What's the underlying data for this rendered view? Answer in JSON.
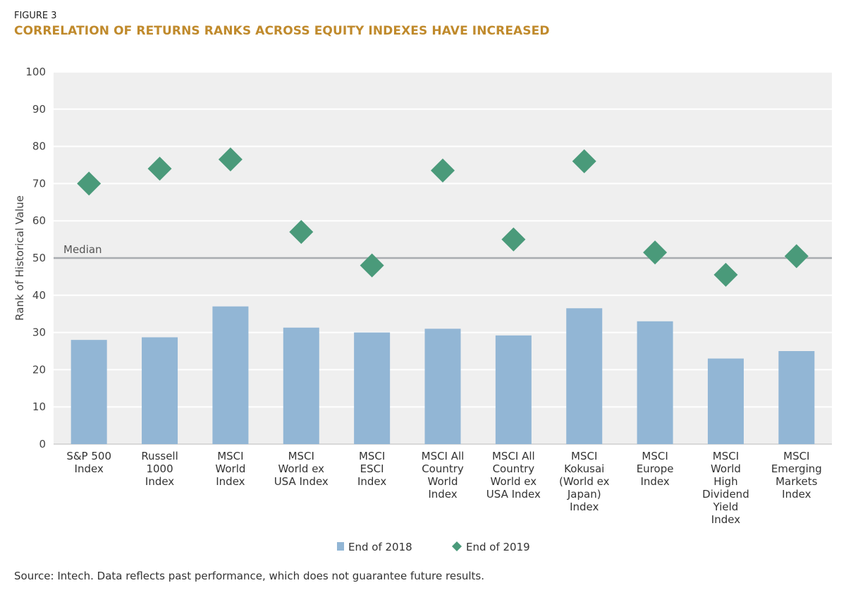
{
  "figure_label": "FIGURE 3",
  "title": "CORRELATION OF RETURNS RANKS ACROSS EQUITY INDEXES HAVE INCREASED",
  "source": "Source: Intech. Data reflects past performance, which does not guarantee future results.",
  "chart_data": {
    "type": "bar",
    "ylabel": "Rank of Historical Value",
    "ylim": [
      0,
      100
    ],
    "yticks": [
      0,
      10,
      20,
      30,
      40,
      50,
      60,
      70,
      80,
      90,
      100
    ],
    "grid": true,
    "legend_position": "bottom",
    "categories": [
      [
        "S&P 500",
        "Index"
      ],
      [
        "Russell",
        "1000",
        "Index"
      ],
      [
        "MSCI",
        "World",
        "Index"
      ],
      [
        "MSCI",
        "World ex",
        "USA Index"
      ],
      [
        "MSCI",
        "ESCI",
        "Index"
      ],
      [
        "MSCI All",
        "Country",
        "World",
        "Index"
      ],
      [
        "MSCI All",
        "Country",
        "World ex",
        "USA Index"
      ],
      [
        "MSCI",
        "Kokusai",
        "(World ex",
        "Japan)",
        "Index"
      ],
      [
        "MSCI",
        "Europe",
        "Index"
      ],
      [
        "MSCI",
        "World",
        "High",
        "Dividend",
        "Yield",
        "Index"
      ],
      [
        "MSCI",
        "Emerging",
        "Markets",
        "Index"
      ]
    ],
    "series": [
      {
        "name": "End of 2018",
        "kind": "bar",
        "color": "#92b6d5",
        "values": [
          28,
          28.7,
          37,
          31.3,
          30,
          31,
          29.2,
          36.5,
          33,
          23,
          25
        ]
      },
      {
        "name": "End of 2019",
        "kind": "marker",
        "marker": "diamond",
        "color": "#4a9a7a",
        "values": [
          70,
          74,
          76.5,
          57,
          48,
          73.5,
          55,
          76,
          51.5,
          45.5,
          50.5
        ]
      }
    ],
    "reference_line": {
      "label": "Median",
      "value": 50,
      "color": "#a8acb0"
    }
  }
}
